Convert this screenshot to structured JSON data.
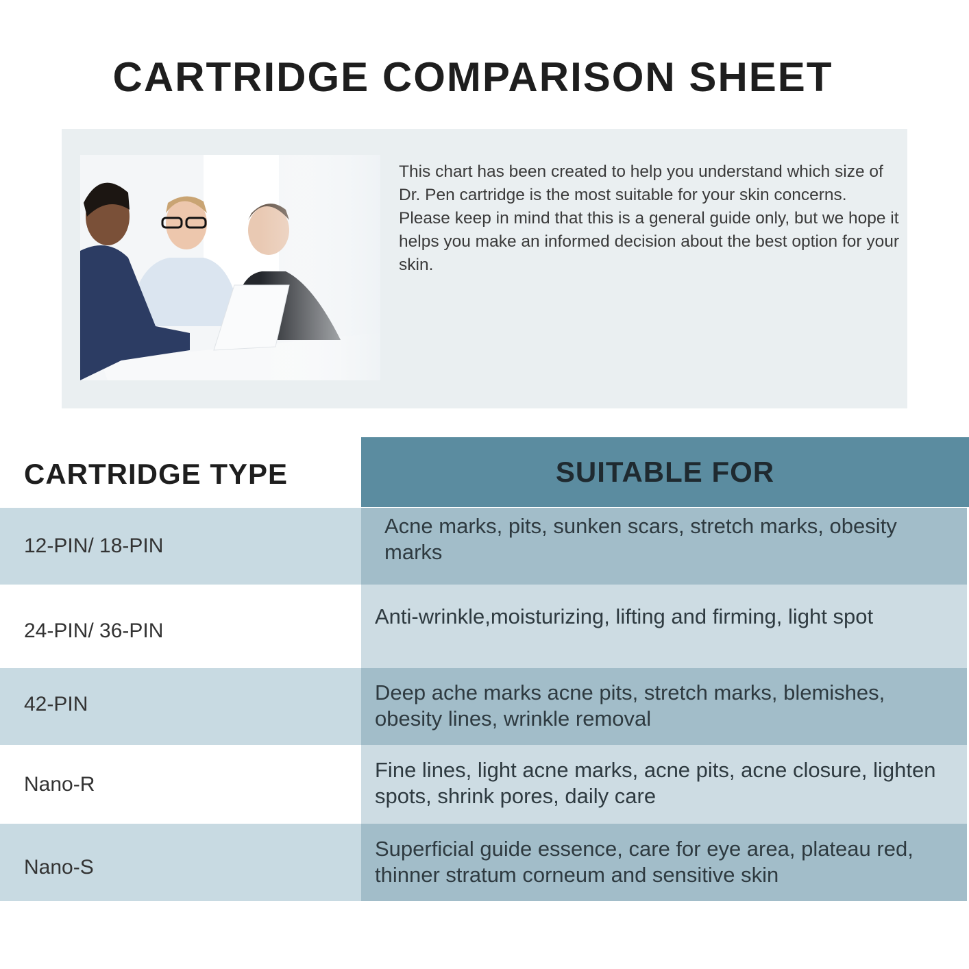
{
  "title": "CARTRIDGE COMPARISON SHEET",
  "intro": {
    "text": "This chart  has been created to help you understand which size of Dr. Pen cartridge is the most suitable for your skin concerns. Please keep in mind that this is a general guide only, but we hope it helps you make an informed decision about the best option for your skin.",
    "image": "photo of three business people talking at a table with a laptop"
  },
  "table": {
    "headers": [
      "CARTRIDGE TYPE",
      "SUITABLE FOR"
    ],
    "rows": [
      {
        "type": "12-PIN/ 18-PIN",
        "suitable": "Acne marks, pits, sunken scars, stretch marks, obesity marks"
      },
      {
        "type": "24-PIN/ 36-PIN",
        "suitable": "Anti-wrinkle,moisturizing, lifting and firming, light spot"
      },
      {
        "type": "42-PIN",
        "suitable": "Deep ache marks acne pits, stretch marks, blemishes, obesity lines, wrinkle removal"
      },
      {
        "type": "Nano-R",
        "suitable": "Fine lines, light acne marks, acne pits, acne closure, lighten spots, shrink pores, daily care"
      },
      {
        "type": "Nano-S",
        "suitable": "Superficial guide essence, care for eye area, plateau red, thinner stratum corneum and sensitive skin"
      }
    ]
  },
  "colors": {
    "header": "#5b8ca0",
    "row_odd_left": "#c8dae2",
    "row_odd_right": "#a2bdc9",
    "row_even_right": "#cddce3",
    "intro_bg": "#eaeff1"
  }
}
